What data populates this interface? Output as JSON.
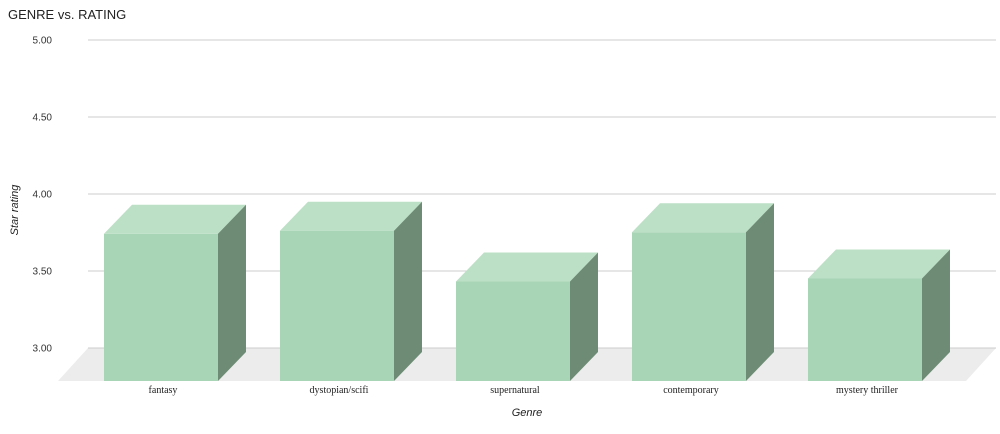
{
  "chart_data": {
    "type": "bar",
    "style": "3d",
    "title": "GENRE vs. RATING",
    "xlabel": "Genre",
    "ylabel": "Star rating",
    "categories": [
      "fantasy",
      "dystopian/scifi",
      "supernatural",
      "contemporary",
      "mystery thriller"
    ],
    "values": [
      3.93,
      3.95,
      3.62,
      3.94,
      3.64
    ],
    "ylim": [
      3.0,
      5.0
    ],
    "yticks": [
      "5.00",
      "4.50",
      "4.00",
      "3.50",
      "3.00"
    ],
    "ytick_values": [
      5.0,
      4.5,
      4.0,
      3.5,
      3.0
    ],
    "grid": true,
    "legend": "none",
    "colors": {
      "bar_front": "#a8d5b5",
      "bar_top": "#bce0c6",
      "bar_side": "#6e8c75",
      "floor": "#ececec",
      "grid": "#cccccc"
    }
  }
}
